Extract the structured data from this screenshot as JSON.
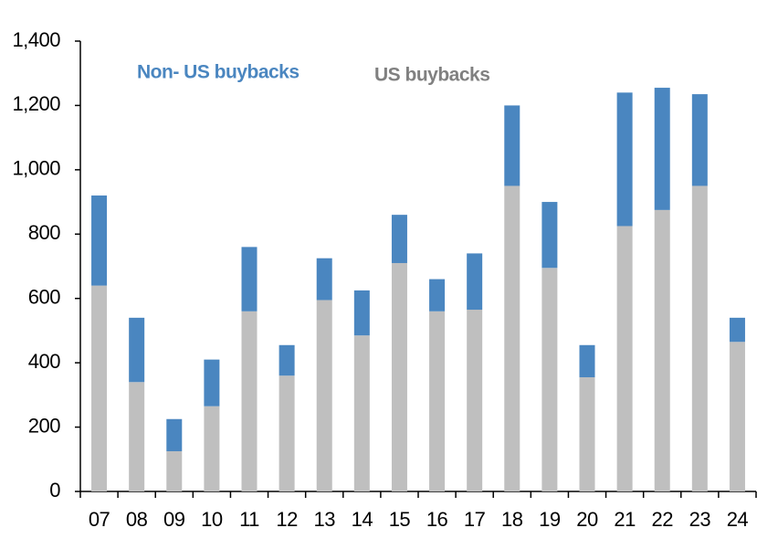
{
  "chart_data": {
    "type": "stacked_bar",
    "categories": [
      "07",
      "08",
      "09",
      "10",
      "11",
      "12",
      "13",
      "14",
      "15",
      "16",
      "17",
      "18",
      "19",
      "20",
      "21",
      "22",
      "23",
      "24"
    ],
    "series": [
      {
        "name": "US buybacks",
        "color": "#bfbfbf",
        "values": [
          640,
          340,
          125,
          265,
          560,
          360,
          595,
          485,
          710,
          560,
          565,
          950,
          695,
          355,
          825,
          875,
          950,
          465
        ]
      },
      {
        "name": "Non- US buybacks",
        "color": "#4a86c0",
        "values": [
          280,
          200,
          100,
          145,
          200,
          95,
          130,
          140,
          150,
          100,
          175,
          250,
          205,
          100,
          415,
          380,
          285,
          75
        ]
      }
    ],
    "ylim": [
      0,
      1400
    ],
    "yticks": [
      0,
      200,
      400,
      600,
      800,
      {
        "value": 1000,
        "label": "1,000"
      },
      {
        "value": 1200,
        "label": "1,200"
      },
      {
        "value": 1400,
        "label": "1,400"
      }
    ]
  }
}
